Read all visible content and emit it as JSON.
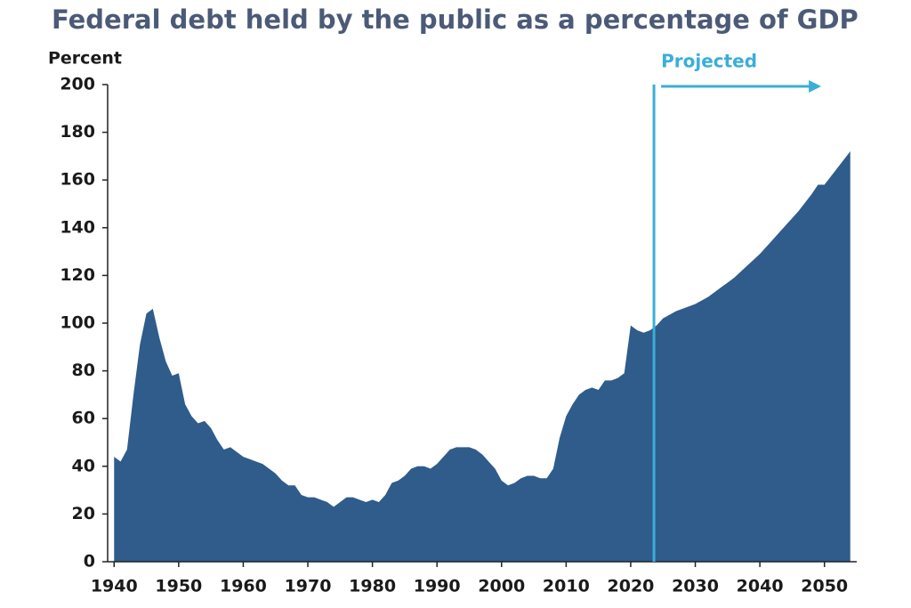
{
  "chart_data": {
    "type": "area",
    "title": "Federal debt held by the public as a percentage of GDP",
    "y_label": "Percent",
    "annotation": "Projected",
    "projection_start": 2023.6,
    "color": "#2f5c8a",
    "projection_color": "#3aaed8",
    "x": [
      1940,
      1941,
      1942,
      1943,
      1944,
      1945,
      1946,
      1947,
      1948,
      1949,
      1950,
      1951,
      1952,
      1953,
      1954,
      1955,
      1956,
      1957,
      1958,
      1959,
      1960,
      1961,
      1962,
      1963,
      1964,
      1965,
      1966,
      1967,
      1968,
      1969,
      1970,
      1971,
      1972,
      1973,
      1974,
      1975,
      1976,
      1977,
      1978,
      1979,
      1980,
      1981,
      1982,
      1983,
      1984,
      1985,
      1986,
      1987,
      1988,
      1989,
      1990,
      1991,
      1992,
      1993,
      1994,
      1995,
      1996,
      1997,
      1998,
      1999,
      2000,
      2001,
      2002,
      2003,
      2004,
      2005,
      2006,
      2007,
      2008,
      2009,
      2010,
      2011,
      2012,
      2013,
      2014,
      2015,
      2016,
      2017,
      2018,
      2019,
      2020,
      2021,
      2022,
      2023,
      2024,
      2025,
      2026,
      2027,
      2028,
      2029,
      2030,
      2031,
      2032,
      2033,
      2034,
      2035,
      2036,
      2037,
      2038,
      2039,
      2040,
      2041,
      2042,
      2043,
      2044,
      2045,
      2046,
      2047,
      2048,
      2049,
      2050,
      2051,
      2052,
      2053,
      2054
    ],
    "values": [
      44,
      42,
      47,
      70,
      91,
      104,
      106,
      94,
      84,
      78,
      79,
      66,
      61,
      58,
      59,
      56,
      51,
      47,
      48,
      46,
      44,
      43,
      42,
      41,
      39,
      37,
      34,
      32,
      32,
      28,
      27,
      27,
      26,
      25,
      23,
      25,
      27,
      27,
      26,
      25,
      26,
      25,
      28,
      33,
      34,
      36,
      39,
      40,
      40,
      39,
      41,
      44,
      47,
      48,
      48,
      48,
      47,
      45,
      42,
      39,
      34,
      32,
      33,
      35,
      36,
      36,
      35,
      35,
      39,
      52,
      61,
      66,
      70,
      72,
      73,
      72,
      76,
      76,
      77,
      79,
      99,
      97,
      96,
      97,
      99,
      102,
      103.5,
      105,
      106,
      107,
      108,
      109.5,
      111,
      113,
      115,
      117,
      119,
      121.5,
      124,
      126.5,
      129,
      132,
      135,
      138,
      141,
      144,
      147,
      150.5,
      154,
      158,
      158,
      161.5,
      165,
      168.5,
      172
    ],
    "xlim": [
      1939,
      2055
    ],
    "xticks": [
      1940,
      1950,
      1960,
      1970,
      1980,
      1990,
      2000,
      2010,
      2020,
      2030,
      2040,
      2050
    ],
    "ylim": [
      0,
      200
    ],
    "yticks": [
      0,
      20,
      40,
      60,
      80,
      100,
      120,
      140,
      160,
      180,
      200
    ]
  }
}
